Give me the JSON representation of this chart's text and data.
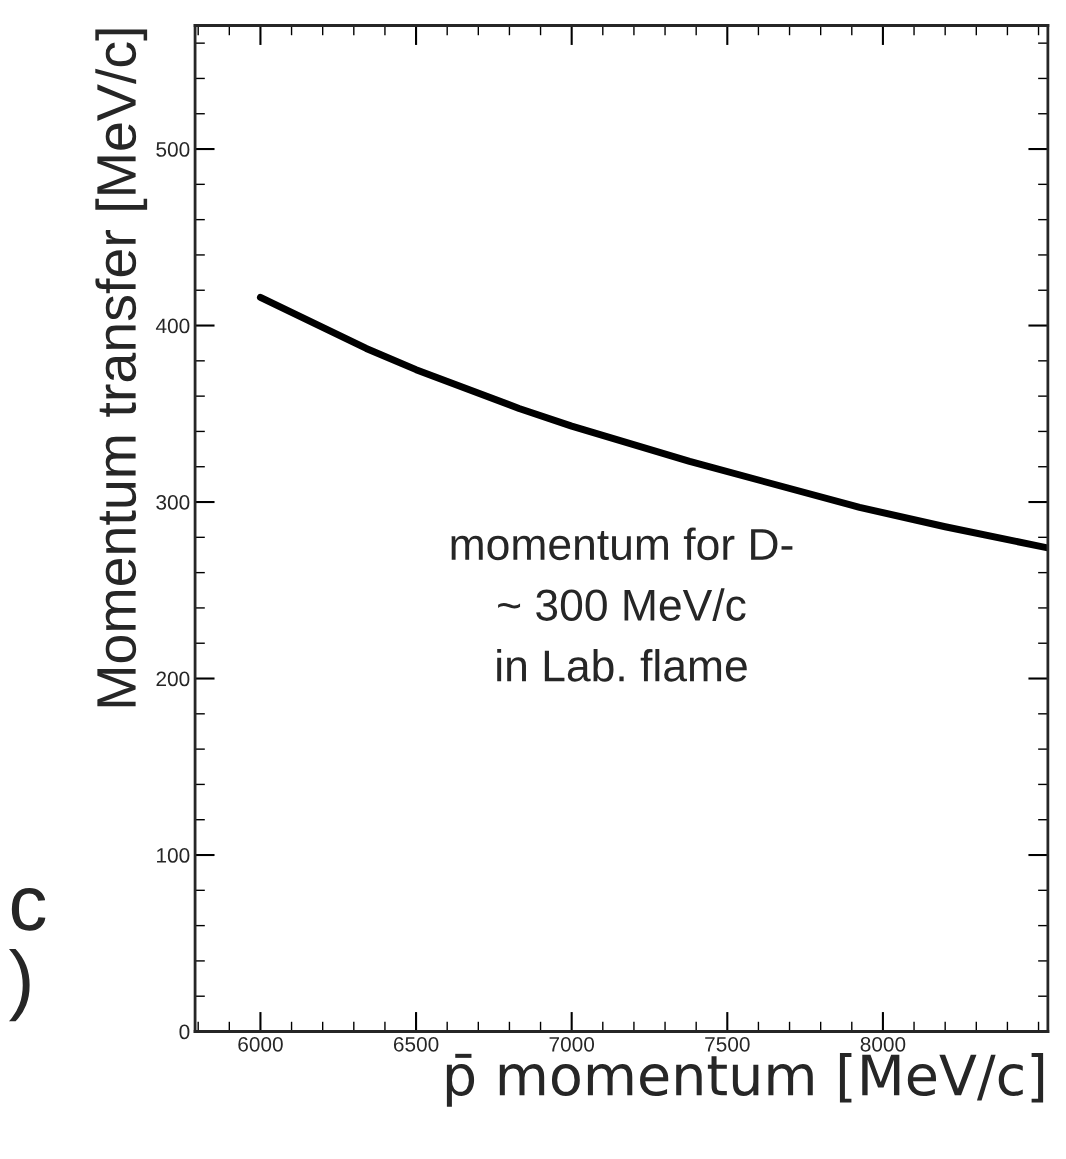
{
  "chart_data": {
    "type": "line",
    "xlabel": "p̄ momentum [MeV/c]",
    "ylabel": "Momentum transfer [MeV/c]",
    "series": [
      {
        "color": "#000000",
        "x": [
          6000,
          6340,
          6500,
          6831,
          7000,
          7379,
          7925,
          8200,
          8530
        ],
        "values": [
          416,
          387,
          375,
          353,
          343,
          323,
          297,
          286,
          274
        ]
      }
    ],
    "xlim": [
      5790,
      8530
    ],
    "xticks": [
      6000,
      6500,
      7000,
      7500,
      8000
    ],
    "ylim": [
      0,
      570
    ],
    "yticks": [
      0,
      100,
      200,
      300,
      400,
      500
    ],
    "grid": false,
    "marker": "none",
    "line_style": "solid",
    "annotations": [
      "momentum for D-\n~ 300 MeV/c\nin Lab. flame",
      "c",
      ")"
    ]
  }
}
